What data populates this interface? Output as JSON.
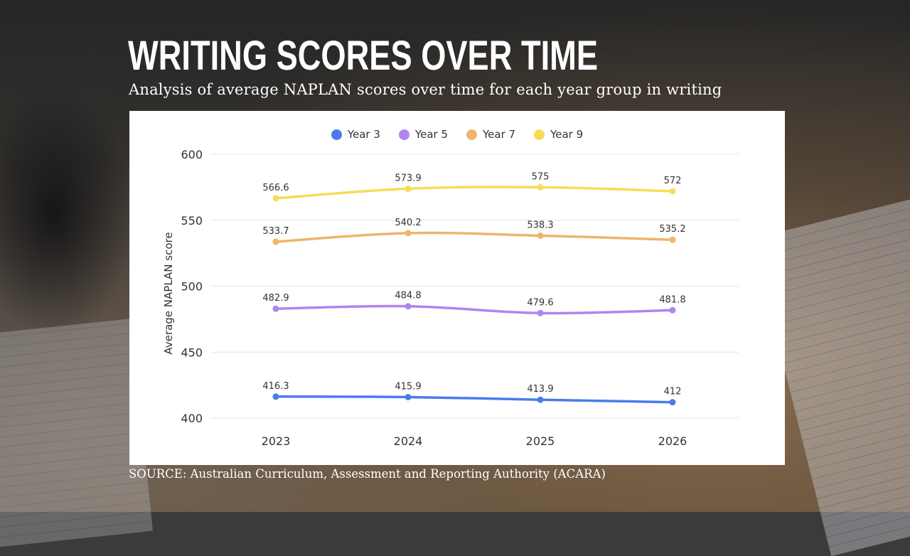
{
  "header": {
    "title": "WRITING SCORES OVER TIME",
    "subtitle": "Analysis of average NAPLAN scores over time for each year group in writing"
  },
  "footer": {
    "source": "SOURCE: Australian Curriculum, Assessment and Reporting Authority (ACARA)"
  },
  "chart_data": {
    "type": "line",
    "x": [
      "2023",
      "2024",
      "2025",
      "2026"
    ],
    "ylabel": "Average NAPLAN score",
    "xlabel": "",
    "ylim": [
      400,
      600
    ],
    "yticks": [
      "400",
      "450",
      "500",
      "550",
      "600"
    ],
    "grid": true,
    "legend_position": "top-center",
    "series": [
      {
        "name": "Year 3",
        "color": "#4a7bec",
        "values": [
          416.3,
          415.9,
          413.9,
          412
        ],
        "labels": [
          "416.3",
          "415.9",
          "413.9",
          "412"
        ]
      },
      {
        "name": "Year 5",
        "color": "#b085f0",
        "values": [
          482.9,
          484.8,
          479.6,
          481.8
        ],
        "labels": [
          "482.9",
          "484.8",
          "479.6",
          "481.8"
        ]
      },
      {
        "name": "Year 7",
        "color": "#efb56a",
        "values": [
          533.7,
          540.2,
          538.3,
          535.2
        ],
        "labels": [
          "533.7",
          "540.2",
          "538.3",
          "535.2"
        ]
      },
      {
        "name": "Year 9",
        "color": "#f6dc5a",
        "values": [
          566.6,
          573.9,
          575,
          572
        ],
        "labels": [
          "566.6",
          "573.9",
          "575",
          "572"
        ]
      }
    ]
  }
}
